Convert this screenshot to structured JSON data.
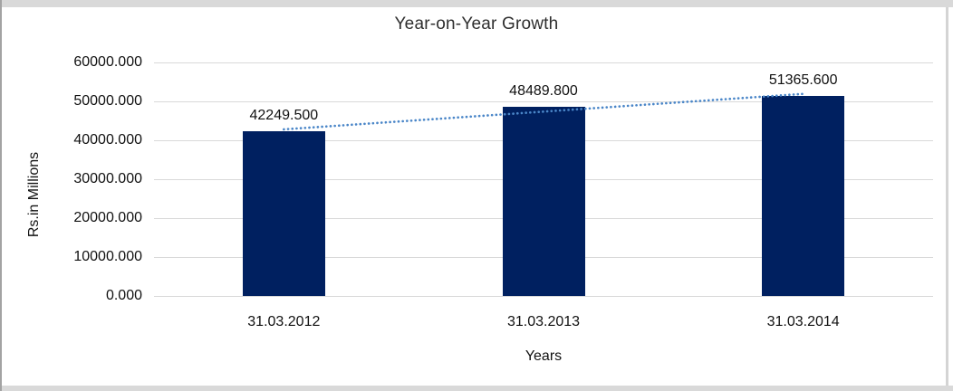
{
  "chart_data": {
    "type": "bar",
    "title": "Year-on-Year Growth",
    "categories": [
      "31.03.2012",
      "31.03.2013",
      "31.03.2014"
    ],
    "values": [
      42249.5,
      48489.8,
      51365.6
    ],
    "data_labels": [
      "42249.500",
      "48489.800",
      "51365.600"
    ],
    "xlabel": "Years",
    "ylabel": "Rs.in Millions",
    "ylim": [
      0,
      60000
    ],
    "ytick_interval": 10000,
    "ytick_labels": [
      "0.000",
      "10000.000",
      "20000.000",
      "30000.000",
      "40000.000",
      "50000.000",
      "60000.000"
    ],
    "grid": true,
    "legend": "none",
    "trendline": {
      "type": "linear",
      "style": "dotted"
    },
    "colors": {
      "bar": "#002060",
      "trendline": "#4a86c8",
      "gridline": "#d9d9d9",
      "frame": "#d9d9d9",
      "text": "#111111",
      "title": "#2f2f2f"
    }
  }
}
